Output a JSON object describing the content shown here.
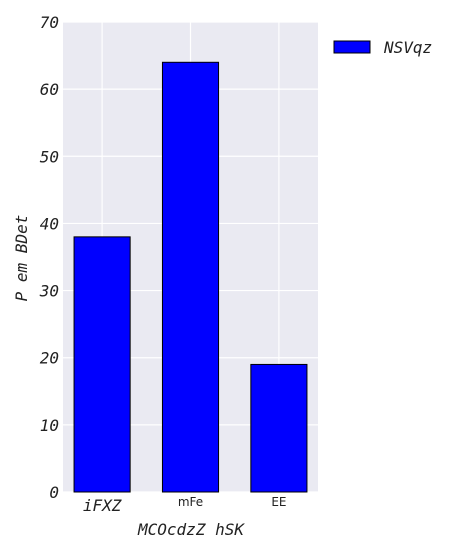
{
  "chart_data": {
    "type": "bar",
    "categories": [
      "iFXZ",
      "mFe",
      "EE"
    ],
    "series": [
      {
        "name": "NSVqz",
        "values": [
          38,
          64,
          19
        ],
        "color": "#0000ff"
      }
    ],
    "xlabel": "MCOcdzZ hSK",
    "ylabel": "P em BDet",
    "ylim": [
      0,
      70
    ],
    "yticks": [
      0,
      10,
      20,
      30,
      40,
      50,
      60,
      70
    ],
    "grid": true,
    "legend": "outside-top-right",
    "plot_background": "#eaeaf2",
    "bar_edge_color": "#000000"
  }
}
